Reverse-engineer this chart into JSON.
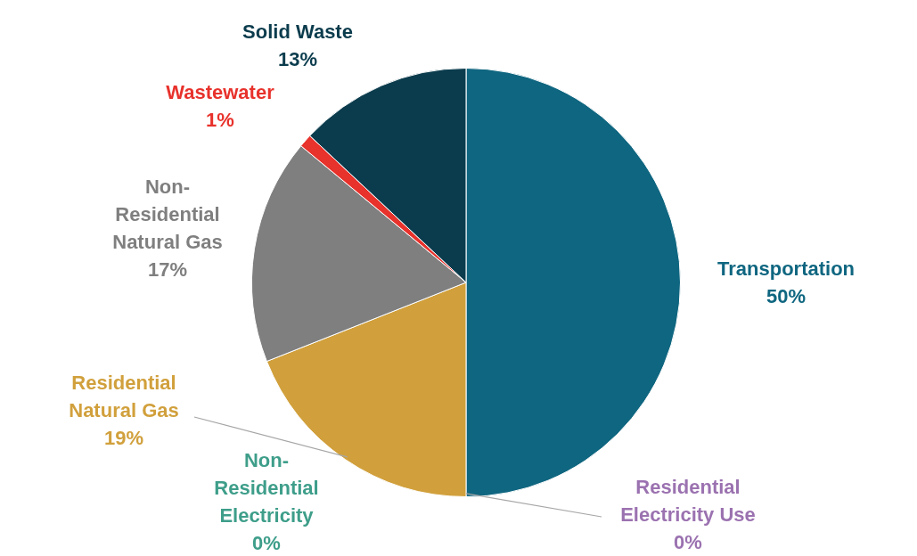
{
  "chart_data": {
    "type": "pie",
    "categories": [
      "Transportation",
      "Residential Electricity Use",
      "Non-Residential Electricity",
      "Residential Natural Gas",
      "Non-Residential Natural Gas",
      "Wastewater",
      "Solid Waste"
    ],
    "values": [
      50,
      0,
      0,
      19,
      17,
      1,
      13
    ],
    "value_labels": [
      "50%",
      "0%",
      "0%",
      "19%",
      "17%",
      "1%",
      "13%"
    ],
    "colors": [
      "#0f6680",
      "#9b72b0",
      "#3e9e8a",
      "#d1a03c",
      "#7f7f7f",
      "#e8322c",
      "#0b3c4d"
    ],
    "legend": false
  }
}
